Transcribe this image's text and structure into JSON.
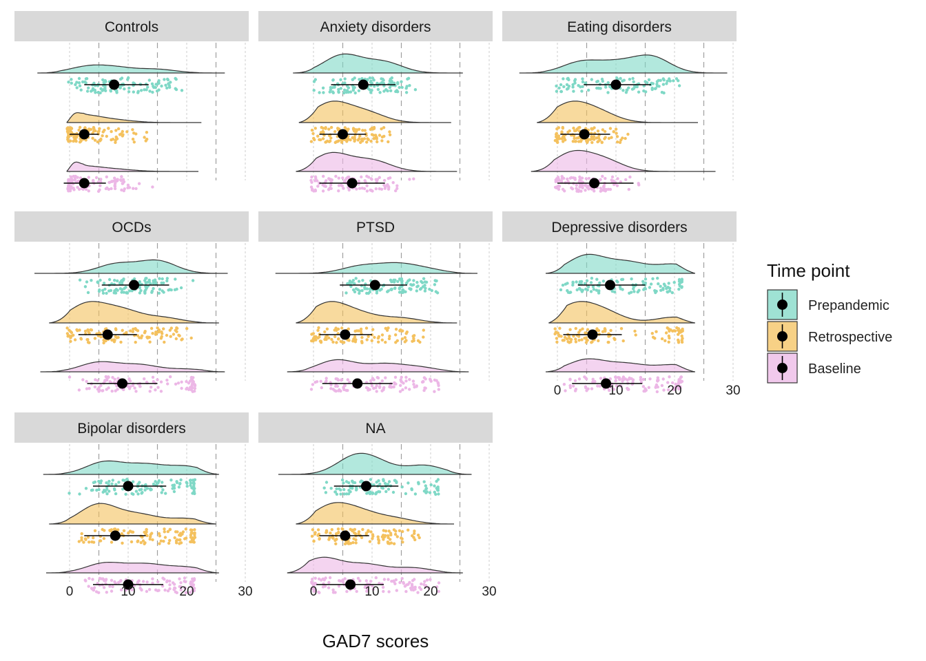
{
  "colors": {
    "Prepandemic": "#7fd8c6",
    "Retrospective": "#f4c15e",
    "Baseline": "#ecb7e6",
    "strip": "#d9d9d9",
    "grid": "#bdbdbd"
  },
  "chart_data": {
    "type": "raincloud",
    "xlabel": "GAD7 scores",
    "xticks": [
      0,
      10,
      20,
      30
    ],
    "xlim": [
      -3,
      30
    ],
    "legend": {
      "title": "Time point",
      "position": "right",
      "items": [
        "Prepandemic",
        "Retrospective",
        "Baseline"
      ]
    },
    "panels": [
      {
        "name": "Controls",
        "series": [
          {
            "time_point": "Prepandemic",
            "mean": 7.6,
            "ci": [
              2.5,
              13.5
            ],
            "x_range": [
              -5.5,
              26.5
            ],
            "density_peaks": [
              [
                3,
                0.5
              ],
              [
                8,
                0.4
              ],
              [
                15,
                0.3
              ]
            ]
          },
          {
            "time_point": "Retrospective",
            "mean": 2.5,
            "ci": [
              0,
              5.0
            ],
            "x_range": [
              -0.5,
              22.5
            ],
            "density_peaks": [
              [
                0.2,
                2.0
              ],
              [
                2,
                1.0
              ],
              [
                8,
                0.3
              ]
            ]
          },
          {
            "time_point": "Baseline",
            "mean": 2.5,
            "ci": [
              -1.0,
              6.2
            ],
            "x_range": [
              -0.5,
              22.0
            ],
            "density_peaks": [
              [
                0.2,
                2.6
              ],
              [
                2,
                0.8
              ],
              [
                8,
                0.3
              ]
            ]
          }
        ]
      },
      {
        "name": "Anxiety disorders",
        "series": [
          {
            "time_point": "Prepandemic",
            "mean": 8.5,
            "ci": [
              3.0,
              14.0
            ],
            "x_range": [
              -3.5,
              25.5
            ],
            "density_peaks": [
              [
                5,
                1.0
              ],
              [
                12,
                0.6
              ]
            ]
          },
          {
            "time_point": "Retrospective",
            "mean": 5.0,
            "ci": [
              1.0,
              9.0
            ],
            "x_range": [
              -2.5,
              23.5
            ],
            "density_peaks": [
              [
                3,
                1.4
              ],
              [
                9,
                0.7
              ]
            ]
          },
          {
            "time_point": "Baseline",
            "mean": 6.6,
            "ci": [
              1.0,
              12.2
            ],
            "x_range": [
              -3.0,
              24.5
            ],
            "density_peaks": [
              [
                3,
                1.0
              ],
              [
                10,
                0.6
              ]
            ]
          }
        ]
      },
      {
        "name": "Eating disorders",
        "series": [
          {
            "time_point": "Prepandemic",
            "mean": 10.0,
            "ci": [
              4.5,
              16.0
            ],
            "x_range": [
              -6.5,
              29.0
            ],
            "density_peaks": [
              [
                4,
                0.6
              ],
              [
                10,
                0.5
              ],
              [
                16,
                0.9
              ]
            ]
          },
          {
            "time_point": "Retrospective",
            "mean": 4.6,
            "ci": [
              0.5,
              9.0
            ],
            "x_range": [
              -3.5,
              24.0
            ],
            "density_peaks": [
              [
                2,
                1.5
              ],
              [
                7,
                0.8
              ]
            ]
          },
          {
            "time_point": "Baseline",
            "mean": 6.3,
            "ci": [
              0.0,
              13.0
            ],
            "x_range": [
              -4.5,
              27.0
            ],
            "density_peaks": [
              [
                2.5,
                1.0
              ],
              [
                8,
                0.6
              ]
            ]
          }
        ]
      },
      {
        "name": "OCDs",
        "series": [
          {
            "time_point": "Prepandemic",
            "mean": 11.0,
            "ci": [
              5.5,
              17.0
            ],
            "x_range": [
              -6.0,
              27.0
            ],
            "density_peaks": [
              [
                8,
                0.6
              ],
              [
                15,
                0.8
              ]
            ]
          },
          {
            "time_point": "Retrospective",
            "mean": 6.5,
            "ci": [
              1.5,
              11.5
            ],
            "x_range": [
              -3.5,
              25.5
            ],
            "density_peaks": [
              [
                3,
                1.1
              ],
              [
                9,
                0.7
              ],
              [
                16,
                0.3
              ]
            ]
          },
          {
            "time_point": "Baseline",
            "mean": 9.0,
            "ci": [
              3.0,
              15.0
            ],
            "x_range": [
              -5.0,
              26.5
            ],
            "density_peaks": [
              [
                5,
                0.7
              ],
              [
                12,
                0.5
              ],
              [
                20,
                0.2
              ]
            ]
          }
        ]
      },
      {
        "name": "PTSD",
        "series": [
          {
            "time_point": "Prepandemic",
            "mean": 10.5,
            "ci": [
              4.5,
              16.0
            ],
            "x_range": [
              -6.5,
              28.0
            ],
            "density_peaks": [
              [
                8,
                0.5
              ],
              [
                14,
                0.6
              ],
              [
                19,
                0.3
              ]
            ]
          },
          {
            "time_point": "Retrospective",
            "mean": 5.4,
            "ci": [
              1.0,
              10.0
            ],
            "x_range": [
              -3.0,
              24.5
            ],
            "density_peaks": [
              [
                2.5,
                1.2
              ],
              [
                8,
                0.5
              ],
              [
                15,
                0.3
              ]
            ]
          },
          {
            "time_point": "Baseline",
            "mean": 7.5,
            "ci": [
              1.5,
              13.5
            ],
            "x_range": [
              -4.5,
              26.5
            ],
            "density_peaks": [
              [
                4,
                0.8
              ],
              [
                12,
                0.5
              ],
              [
                18,
                0.3
              ]
            ]
          }
        ]
      },
      {
        "name": "Depressive disorders",
        "series": [
          {
            "time_point": "Prepandemic",
            "mean": 9.0,
            "ci": [
              3.5,
              15.0
            ],
            "x_range": [
              -2.0,
              23.5
            ],
            "density_peaks": [
              [
                5,
                1.0
              ],
              [
                12,
                0.6
              ],
              [
                20,
                0.5
              ]
            ]
          },
          {
            "time_point": "Retrospective",
            "mean": 6.0,
            "ci": [
              1.0,
              11.0
            ],
            "x_range": [
              -1.5,
              23.5
            ],
            "density_peaks": [
              [
                3,
                1.2
              ],
              [
                8,
                0.7
              ],
              [
                20,
                0.4
              ]
            ]
          },
          {
            "time_point": "Baseline",
            "mean": 8.3,
            "ci": [
              2.5,
              14.5
            ],
            "x_range": [
              -2.0,
              23.5
            ],
            "density_peaks": [
              [
                5,
                0.8
              ],
              [
                12,
                0.5
              ],
              [
                20,
                0.45
              ]
            ]
          }
        ]
      },
      {
        "name": "Bipolar disorders",
        "series": [
          {
            "time_point": "Prepandemic",
            "mean": 10.0,
            "ci": [
              4.0,
              16.5
            ],
            "x_range": [
              -4.5,
              25.5
            ],
            "density_peaks": [
              [
                6,
                0.8
              ],
              [
                13,
                0.6
              ],
              [
                20,
                0.5
              ]
            ]
          },
          {
            "time_point": "Retrospective",
            "mean": 7.8,
            "ci": [
              2.5,
              13.0
            ],
            "x_range": [
              -3.5,
              25.0
            ],
            "density_peaks": [
              [
                5,
                1.1
              ],
              [
                12,
                0.5
              ],
              [
                20,
                0.3
              ]
            ]
          },
          {
            "time_point": "Baseline",
            "mean": 10.0,
            "ci": [
              4.0,
              16.0
            ],
            "x_range": [
              -4.0,
              25.5
            ],
            "density_peaks": [
              [
                6,
                0.7
              ],
              [
                13,
                0.6
              ],
              [
                20,
                0.4
              ]
            ]
          }
        ]
      },
      {
        "name": "NA",
        "series": [
          {
            "time_point": "Prepandemic",
            "mean": 9.0,
            "ci": [
              3.5,
              14.5
            ],
            "x_range": [
              -6.0,
              27.0
            ],
            "density_peaks": [
              [
                7,
                0.9
              ],
              [
                11,
                0.5
              ],
              [
                19,
                0.5
              ]
            ]
          },
          {
            "time_point": "Retrospective",
            "mean": 5.4,
            "ci": [
              1.0,
              9.5
            ],
            "x_range": [
              -3.0,
              24.0
            ],
            "density_peaks": [
              [
                3,
                1.0
              ],
              [
                8,
                0.6
              ],
              [
                14,
                0.3
              ]
            ]
          },
          {
            "time_point": "Baseline",
            "mean": 6.3,
            "ci": [
              0.5,
              12.0
            ],
            "x_range": [
              -4.5,
              25.5
            ],
            "density_peaks": [
              [
                1.5,
                0.9
              ],
              [
                9,
                0.5
              ],
              [
                17,
                0.3
              ]
            ]
          }
        ]
      }
    ]
  }
}
